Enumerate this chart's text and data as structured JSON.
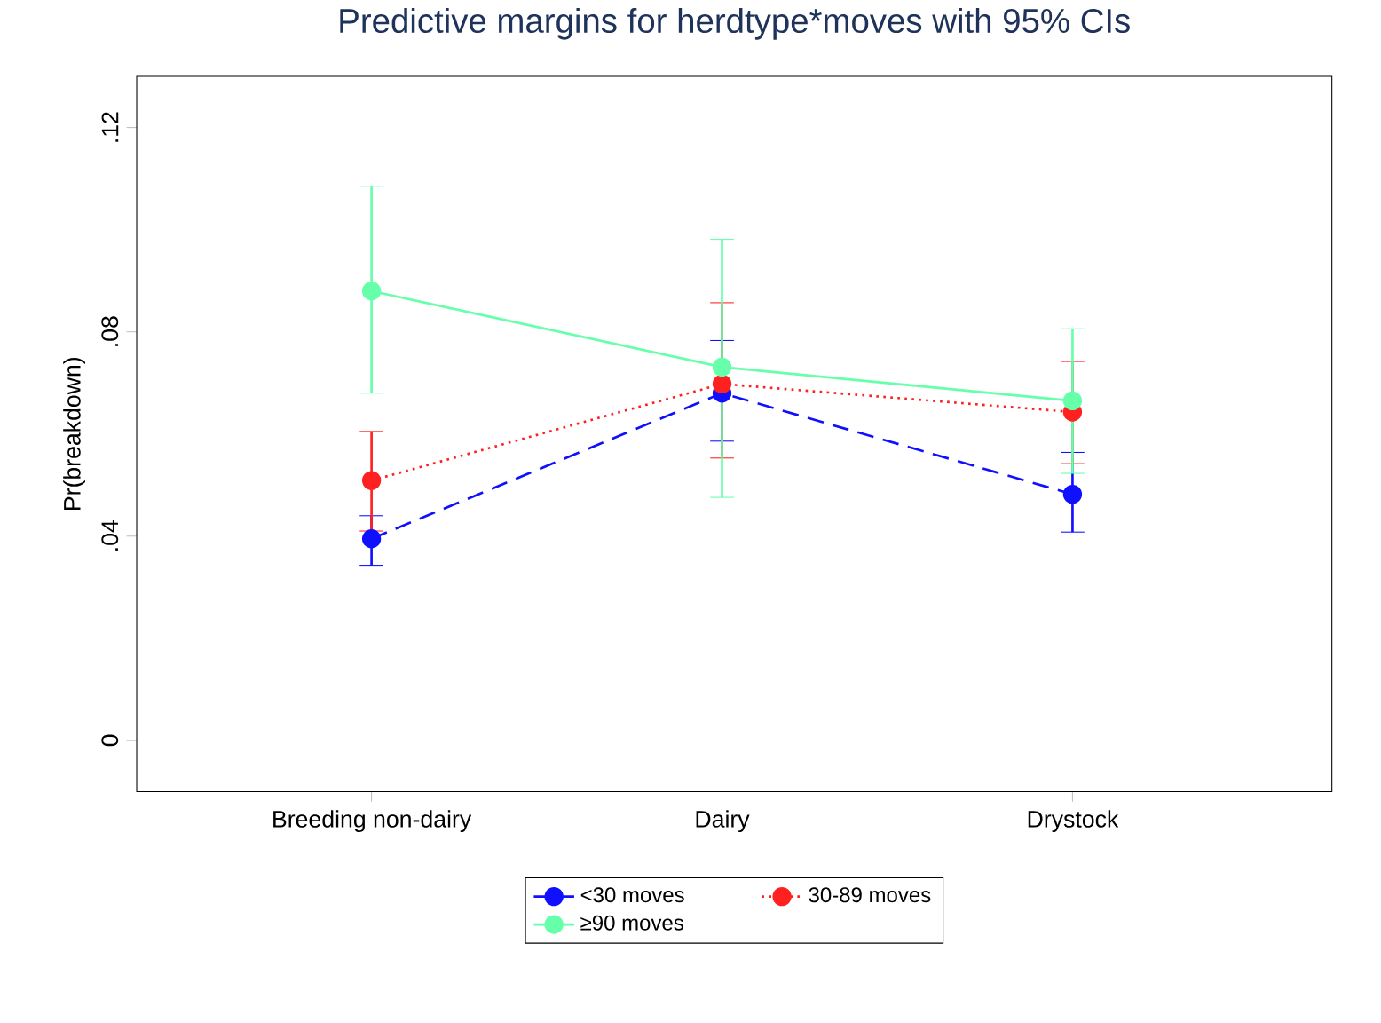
{
  "chart_data": {
    "type": "line",
    "title": "Predictive margins for herdtype*moves with 95% CIs",
    "ylabel": "Pr(breakdown)",
    "categories": [
      "Breeding non-dairy",
      "Dairy",
      "Drystock"
    ],
    "ylim": [
      -0.01,
      0.13
    ],
    "yticks": [
      0,
      {
        "value": 0.04,
        "label": ".04"
      },
      {
        "value": 0.08,
        "label": ".08"
      },
      {
        "value": 0.12,
        "label": ".12"
      }
    ],
    "marker": "circle",
    "legend": "bottom",
    "grid": false,
    "series": [
      {
        "name": "<30 moves",
        "color": "#1010ff",
        "line_style": "dashed",
        "values": [
          0.0395,
          0.068,
          0.0482
        ],
        "errors": [
          [
            0.0343,
            0.044
          ],
          [
            0.0586,
            0.0783
          ],
          [
            0.0408,
            0.0564
          ]
        ]
      },
      {
        "name": "30-89 moves",
        "color": "#ff2020",
        "line_style": "dotted",
        "values": [
          0.0509,
          0.0698,
          0.0643
        ],
        "errors": [
          [
            0.041,
            0.0605
          ],
          [
            0.0553,
            0.0857
          ],
          [
            0.0542,
            0.0742
          ]
        ]
      },
      {
        "name": "≥90 moves",
        "color": "#66ffaa",
        "line_style": "solid",
        "values": [
          0.088,
          0.0731,
          0.0665
        ],
        "errors": [
          [
            0.068,
            0.1085
          ],
          [
            0.0476,
            0.0981
          ],
          [
            0.0523,
            0.0806
          ]
        ]
      }
    ]
  }
}
